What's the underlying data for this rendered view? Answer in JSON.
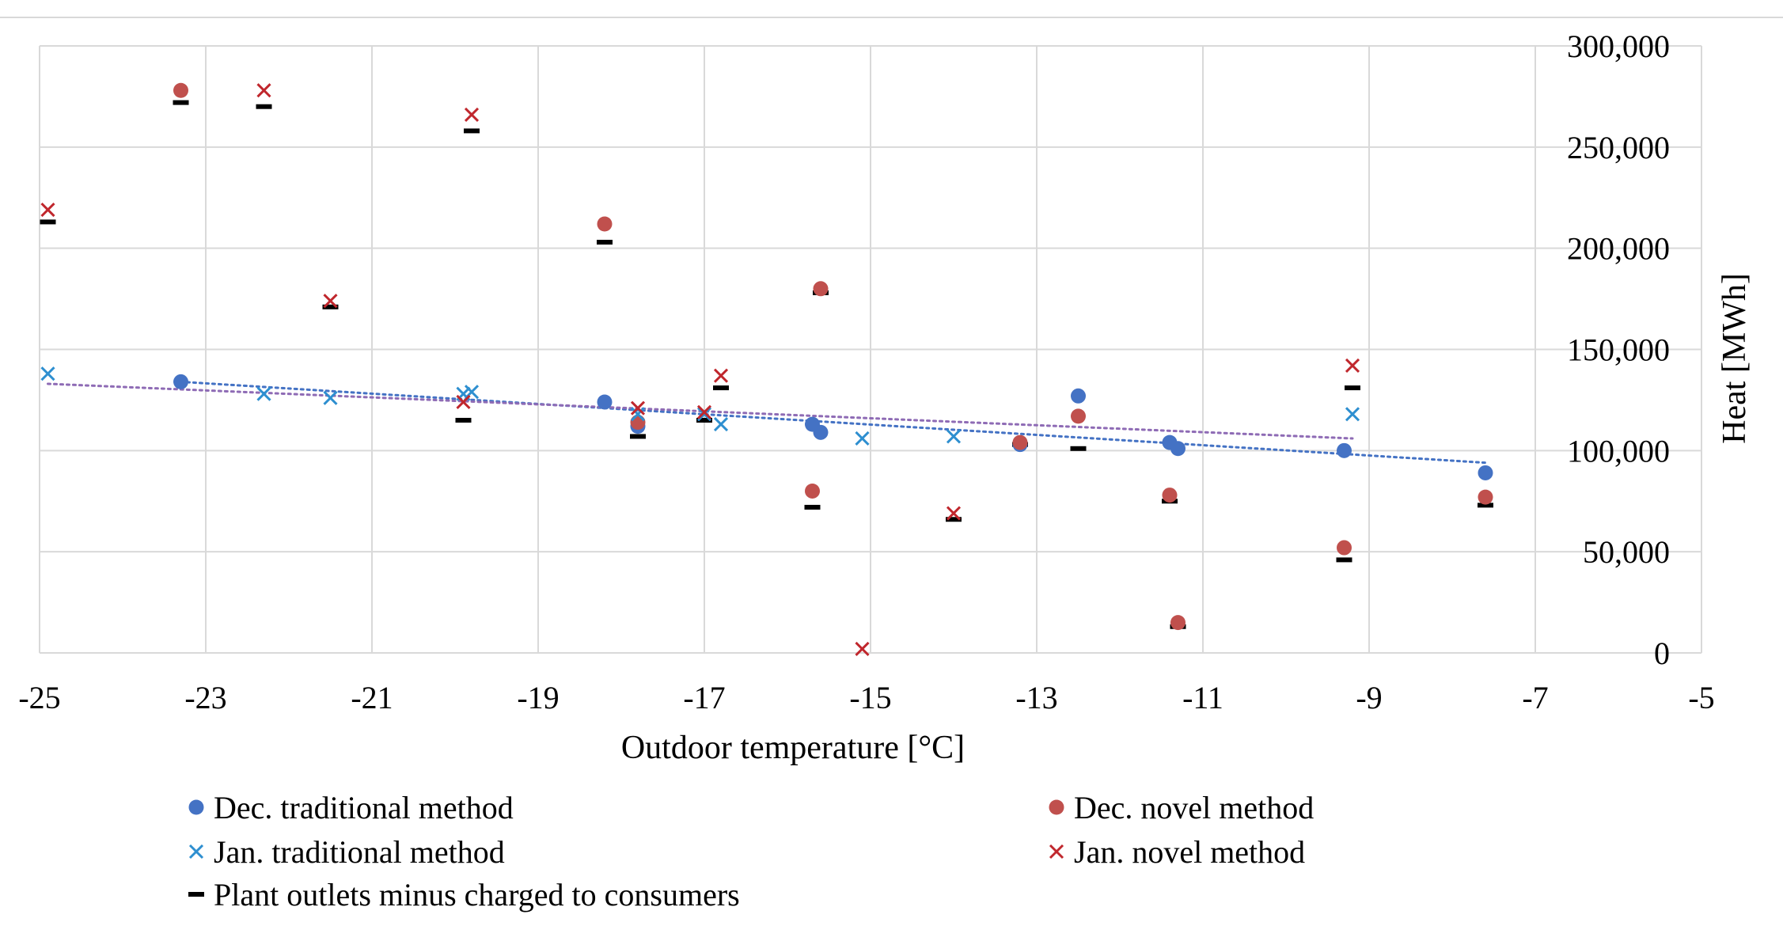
{
  "chart_data": {
    "type": "scatter",
    "xlabel": "Outdoor temperature [°C]",
    "ylabel": "Heat [MWh]",
    "xlim": [
      -25,
      -5
    ],
    "ylim": [
      0,
      300000
    ],
    "x_ticks": [
      -25,
      -23,
      -21,
      -19,
      -17,
      -15,
      -13,
      -11,
      -9,
      -7,
      -5
    ],
    "x_tick_labels": [
      "-25",
      "-23",
      "-21",
      "-19",
      "-17",
      "-15",
      "-13",
      "-11",
      "-9",
      "-7",
      "-5"
    ],
    "y_ticks": [
      0,
      50000,
      100000,
      150000,
      200000,
      250000,
      300000
    ],
    "y_tick_labels": [
      "0",
      "50,000",
      "100,000",
      "150,000",
      "200,000",
      "250,000",
      "300,000"
    ],
    "y_axis_side": "right",
    "grid": true,
    "legend_position": "bottom",
    "series": [
      {
        "name": "Dec. traditional method",
        "marker": "circle",
        "color": "#4472C4",
        "points": [
          [
            -23.3,
            134000
          ],
          [
            -18.2,
            124000
          ],
          [
            -17.8,
            112000
          ],
          [
            -15.7,
            113000
          ],
          [
            -15.6,
            109000
          ],
          [
            -13.2,
            103000
          ],
          [
            -12.5,
            127000
          ],
          [
            -11.4,
            104000
          ],
          [
            -11.3,
            101000
          ],
          [
            -9.3,
            100000
          ],
          [
            -7.6,
            89000
          ]
        ],
        "trendline": {
          "x": [
            -23.3,
            -7.6
          ],
          "y": [
            134000,
            94000
          ]
        }
      },
      {
        "name": "Dec. novel method",
        "marker": "circle",
        "color": "#C0504D",
        "points": [
          [
            -23.3,
            278000
          ],
          [
            -18.2,
            212000
          ],
          [
            -17.8,
            114000
          ],
          [
            -15.7,
            80000
          ],
          [
            -15.6,
            180000
          ],
          [
            -13.2,
            104000
          ],
          [
            -12.5,
            117000
          ],
          [
            -11.4,
            78000
          ],
          [
            -11.3,
            15000
          ],
          [
            -9.3,
            52000
          ],
          [
            -7.6,
            77000
          ]
        ]
      },
      {
        "name": "Jan. traditional method",
        "marker": "x",
        "color": "#2E8FD0",
        "points": [
          [
            -24.9,
            138000
          ],
          [
            -22.3,
            128000
          ],
          [
            -21.5,
            126000
          ],
          [
            -19.9,
            128000
          ],
          [
            -19.8,
            129000
          ],
          [
            -17.8,
            118000
          ],
          [
            -17.0,
            118000
          ],
          [
            -16.8,
            113000
          ],
          [
            -15.1,
            106000
          ],
          [
            -14.0,
            107000
          ],
          [
            -9.2,
            118000
          ]
        ],
        "trendline": {
          "x": [
            -24.9,
            -9.2
          ],
          "y": [
            133000,
            106000
          ]
        }
      },
      {
        "name": "Jan. novel method",
        "marker": "x",
        "color": "#C0272D",
        "points": [
          [
            -24.9,
            219000
          ],
          [
            -22.3,
            278000
          ],
          [
            -21.5,
            174000
          ],
          [
            -19.9,
            124000
          ],
          [
            -19.8,
            266000
          ],
          [
            -17.8,
            121000
          ],
          [
            -17.0,
            119000
          ],
          [
            -16.8,
            137000
          ],
          [
            -15.1,
            2000
          ],
          [
            -14.0,
            69000
          ],
          [
            -9.2,
            142000
          ]
        ]
      },
      {
        "name": "Plant outlets minus charged to consumers",
        "marker": "dash",
        "color": "#000000",
        "points": [
          [
            -24.9,
            213000
          ],
          [
            -23.3,
            272000
          ],
          [
            -22.3,
            270000
          ],
          [
            -21.5,
            171000
          ],
          [
            -19.9,
            115000
          ],
          [
            -19.8,
            258000
          ],
          [
            -18.2,
            203000
          ],
          [
            -17.8,
            107000
          ],
          [
            -17.0,
            115000
          ],
          [
            -16.8,
            131000
          ],
          [
            -15.7,
            72000
          ],
          [
            -15.6,
            178000
          ],
          [
            -14.0,
            66000
          ],
          [
            -13.2,
            103000
          ],
          [
            -12.5,
            101000
          ],
          [
            -11.4,
            75000
          ],
          [
            -11.3,
            13000
          ],
          [
            -9.3,
            46000
          ],
          [
            -9.2,
            131000
          ],
          [
            -7.6,
            73000
          ]
        ]
      }
    ],
    "trendline_colors": {
      "Dec. traditional method": "#4472C4",
      "Jan. traditional method": "#8E6BB5"
    }
  }
}
